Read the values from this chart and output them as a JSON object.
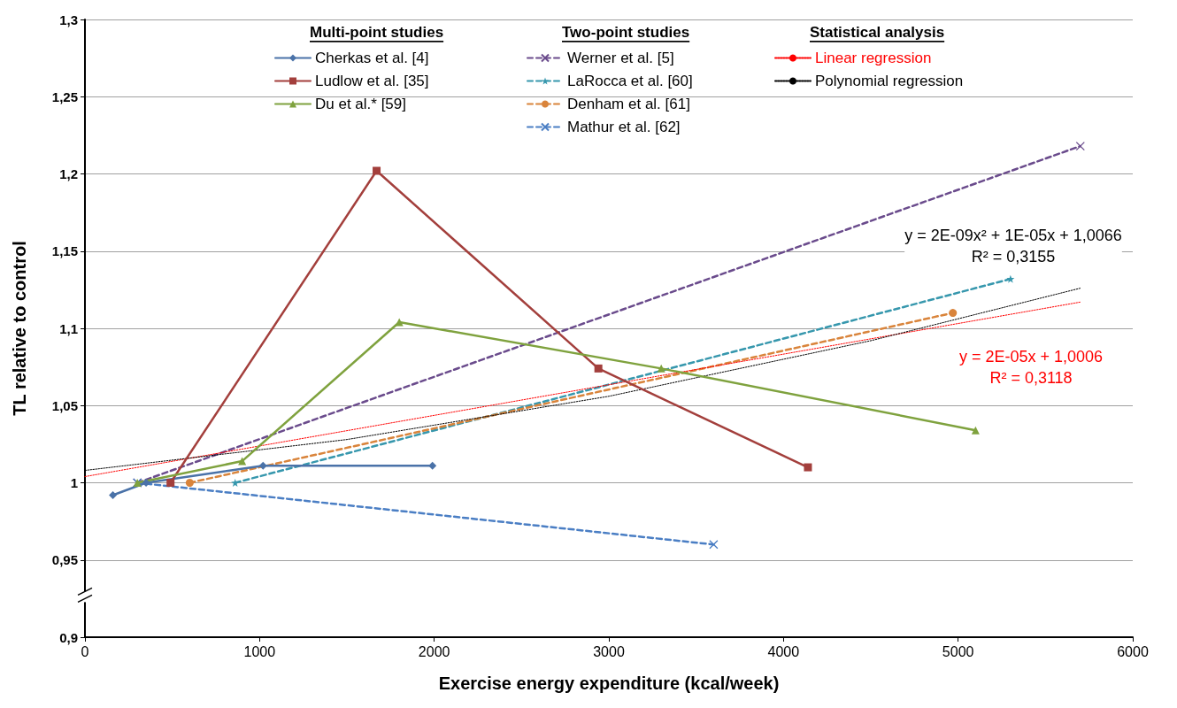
{
  "chart_data": {
    "type": "line",
    "xlabel": "Exercise energy expenditure (kcal/week)",
    "ylabel": "TL relative to control",
    "xlim": [
      0,
      6000
    ],
    "xticks": [
      0,
      1000,
      2000,
      3000,
      4000,
      5000,
      6000
    ],
    "ylim": [
      0.9,
      1.3
    ],
    "yticks": [
      {
        "value": 0.9,
        "label": "0,9"
      },
      {
        "value": 0.95,
        "label": "0,95"
      },
      {
        "value": 1,
        "label": "1"
      },
      {
        "value": 1.05,
        "label": "1,05"
      },
      {
        "value": 1.1,
        "label": "1,1"
      },
      {
        "value": 1.15,
        "label": "1,15"
      },
      {
        "value": 1.2,
        "label": "1,2"
      },
      {
        "value": 1.25,
        "label": "1,25"
      },
      {
        "value": 1.3,
        "label": "1,3"
      }
    ],
    "grid": "y",
    "legend": "top",
    "annotations": [
      "Multi-point studies",
      "Two-point studies",
      "Statistical analysis",
      "y = 2E-05x + 1,0006\nR² = 0,3118",
      "y = 2E-09x² + 1E-05x + 1,0066\nR² = 0,3155"
    ],
    "series": [
      {
        "name": "Cherkas et al. [4]",
        "color": "#4a72a8",
        "marker": "diamond",
        "line_style": "solid",
        "x": [
          160,
          350,
          1020,
          1990
        ],
        "values": [
          0.992,
          1.0,
          1.011,
          1.011
        ]
      },
      {
        "name": "Ludlow et al. [35]",
        "color": "#a33f3c",
        "marker": "square",
        "line_style": "solid",
        "x": [
          490,
          1670,
          2940,
          4140
        ],
        "values": [
          1.0,
          1.202,
          1.074,
          1.01
        ]
      },
      {
        "name": "Du et al.* [59]",
        "color": "#7fa23e",
        "marker": "triangle",
        "line_style": "solid",
        "x": [
          300,
          900,
          1800,
          3300,
          5100
        ],
        "values": [
          1.0,
          1.014,
          1.104,
          1.074,
          1.034
        ]
      },
      {
        "name": "Werner et al. [5]",
        "color": "#6a4b8c",
        "marker": "cross",
        "line_style": "dashed",
        "x": [
          300,
          5700
        ],
        "values": [
          1.0,
          1.218
        ]
      },
      {
        "name": "LaRocca et al. [60]",
        "color": "#3697ad",
        "marker": "star",
        "line_style": "dashed",
        "x": [
          860,
          5300
        ],
        "values": [
          1.0,
          1.132
        ]
      },
      {
        "name": "Denham et al. [61]",
        "color": "#d9843b",
        "marker": "circle",
        "line_style": "dashed",
        "x": [
          600,
          4970
        ],
        "values": [
          1.0,
          1.11
        ]
      },
      {
        "name": "Mathur et al. [62]",
        "color": "#4a7ec4",
        "marker": "cross",
        "line_style": "dashed",
        "x": [
          300,
          3600
        ],
        "values": [
          1.0,
          0.96
        ]
      },
      {
        "name": "Linear regression",
        "color": "#ff0000",
        "marker": "none",
        "line_style": "dotted",
        "x": [
          0,
          5700
        ],
        "values": [
          1.004,
          1.117
        ]
      },
      {
        "name": "Polynomial regression",
        "color": "#000000",
        "marker": "none",
        "line_style": "dotted",
        "x": [
          0,
          1500,
          3000,
          4500,
          5700
        ],
        "values": [
          1.008,
          1.028,
          1.056,
          1.092,
          1.126
        ]
      }
    ]
  }
}
